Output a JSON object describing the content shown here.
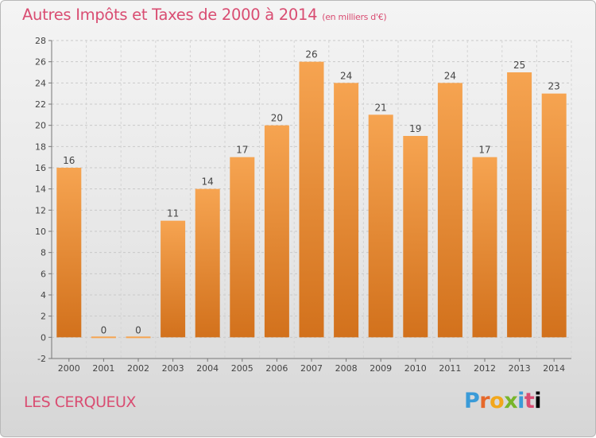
{
  "title": "Autres Impôts et Taxes de 2000 à 2014",
  "subtitle": "(en milliers d'€)",
  "location": "LES CERQUEUX",
  "logo_letters": [
    "P",
    "r",
    "o",
    "x",
    "i",
    "t",
    "i"
  ],
  "colors": {
    "title": "#d94d72",
    "bar_top": "#f6a451",
    "bar_bottom": "#d2711c"
  },
  "chart_data": {
    "type": "bar",
    "categories": [
      "2000",
      "2001",
      "2002",
      "2003",
      "2004",
      "2005",
      "2006",
      "2007",
      "2008",
      "2009",
      "2010",
      "2011",
      "2012",
      "2013",
      "2014"
    ],
    "values": [
      16,
      0,
      0,
      11,
      14,
      17,
      20,
      26,
      24,
      21,
      19,
      24,
      17,
      25,
      23
    ],
    "ylim": [
      -2,
      28
    ],
    "yticks": [
      -2,
      0,
      2,
      4,
      6,
      8,
      10,
      12,
      14,
      16,
      18,
      20,
      22,
      24,
      26,
      28
    ],
    "grid": true
  }
}
